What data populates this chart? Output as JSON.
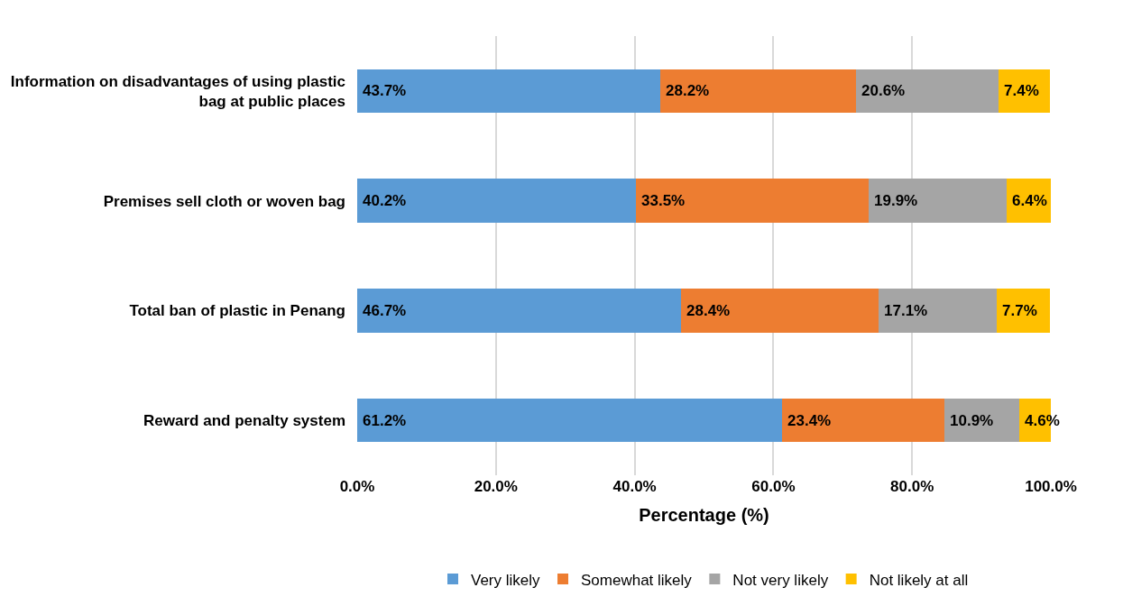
{
  "chart_data": {
    "type": "bar",
    "orientation": "horizontal",
    "stacked": true,
    "categories": [
      "Information on disadvantages of using plastic bag at public places",
      "Premises sell cloth or woven bag",
      "Total ban of plastic in Penang",
      "Reward and penalty system"
    ],
    "series": [
      {
        "name": "Very likely",
        "color": "#5b9bd5",
        "values": [
          43.7,
          40.2,
          46.7,
          61.2
        ],
        "value_labels": [
          "43.7%",
          "40.2%",
          "46.7%",
          "61.2%"
        ]
      },
      {
        "name": "Somewhat likely",
        "color": "#ed7d31",
        "values": [
          28.2,
          33.5,
          28.4,
          23.4
        ],
        "value_labels": [
          "28.2%",
          "33.5%",
          "28.4%",
          "23.4%"
        ]
      },
      {
        "name": "Not very likely",
        "color": "#a5a5a5",
        "values": [
          20.6,
          19.9,
          17.1,
          10.9
        ],
        "value_labels": [
          "20.6%",
          "19.9%",
          "17.1%",
          "10.9%"
        ]
      },
      {
        "name": "Not likely at all",
        "color": "#ffc000",
        "values": [
          7.4,
          6.4,
          7.7,
          4.6
        ],
        "value_labels": [
          "7.4%",
          "6.4%",
          "7.7%",
          "4.6%"
        ]
      }
    ],
    "xlabel": "Percentage (%)",
    "xlim": [
      0,
      100
    ],
    "xticks": [
      {
        "value": 0,
        "label": "0.0%"
      },
      {
        "value": 20,
        "label": "20.0%"
      },
      {
        "value": 40,
        "label": "40.0%"
      },
      {
        "value": 60,
        "label": "60.0%"
      },
      {
        "value": 80,
        "label": "80.0%"
      },
      {
        "value": 100,
        "label": "100.0%"
      }
    ],
    "grid": "x",
    "legend": "bottom"
  }
}
